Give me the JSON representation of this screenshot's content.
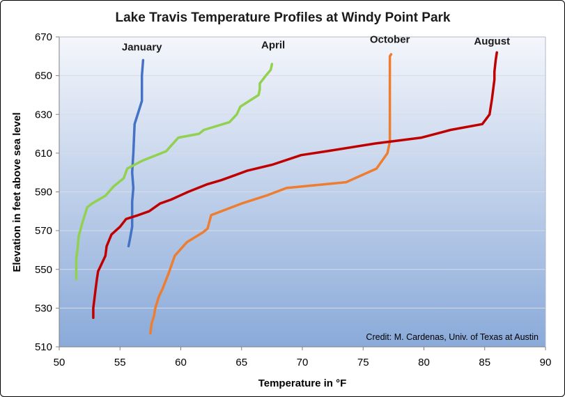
{
  "chart_data": {
    "type": "line",
    "title": "Lake Travis Temperature Profiles at Windy Point Park",
    "xlabel": "Temperature in °F",
    "ylabel": "Elevation in feet above sea level",
    "xlim": [
      50,
      90
    ],
    "ylim": [
      510,
      670
    ],
    "xticks": [
      50,
      55,
      60,
      65,
      70,
      75,
      80,
      85,
      90
    ],
    "yticks": [
      510,
      530,
      550,
      570,
      590,
      610,
      630,
      650,
      670
    ],
    "grid": "horizontal",
    "credit": "Credit: M. Cardenas, Univ. of Texas at Austin",
    "series": [
      {
        "name": "January",
        "color": "#4472c4",
        "points": [
          [
            55.7,
            562
          ],
          [
            55.8,
            565
          ],
          [
            56.0,
            572
          ],
          [
            56.0,
            585
          ],
          [
            56.1,
            592
          ],
          [
            56.0,
            600
          ],
          [
            56.1,
            610
          ],
          [
            56.2,
            625
          ],
          [
            56.8,
            637
          ],
          [
            56.8,
            650
          ],
          [
            56.9,
            658
          ]
        ]
      },
      {
        "name": "April",
        "color": "#92d050",
        "points": [
          [
            51.4,
            545
          ],
          [
            51.4,
            550
          ],
          [
            51.4,
            555
          ],
          [
            51.5,
            560
          ],
          [
            51.6,
            567
          ],
          [
            51.9,
            574
          ],
          [
            52.1,
            578
          ],
          [
            52.3,
            582
          ],
          [
            52.7,
            584
          ],
          [
            53.8,
            588
          ],
          [
            54.5,
            593
          ],
          [
            55.3,
            597
          ],
          [
            55.6,
            602
          ],
          [
            56.8,
            606
          ],
          [
            58.8,
            611
          ],
          [
            59.8,
            618
          ],
          [
            61.5,
            620
          ],
          [
            61.9,
            622
          ],
          [
            64.0,
            626
          ],
          [
            64.6,
            630
          ],
          [
            64.9,
            634
          ],
          [
            66.4,
            640
          ],
          [
            66.5,
            643
          ],
          [
            66.5,
            646
          ],
          [
            67.0,
            650
          ],
          [
            67.4,
            653
          ],
          [
            67.5,
            656
          ]
        ]
      },
      {
        "name": "October",
        "color": "#ed7d31",
        "points": [
          [
            57.5,
            517
          ],
          [
            57.6,
            522
          ],
          [
            57.8,
            526
          ],
          [
            57.9,
            530
          ],
          [
            58.2,
            536
          ],
          [
            58.5,
            540
          ],
          [
            59.0,
            548
          ],
          [
            59.5,
            557
          ],
          [
            60.5,
            564
          ],
          [
            61.8,
            569
          ],
          [
            62.2,
            571
          ],
          [
            62.5,
            578
          ],
          [
            65.0,
            584
          ],
          [
            67.0,
            588
          ],
          [
            68.7,
            592
          ],
          [
            73.6,
            595
          ],
          [
            76.1,
            602
          ],
          [
            77.0,
            610
          ],
          [
            77.2,
            616
          ],
          [
            77.2,
            630
          ],
          [
            77.2,
            650
          ],
          [
            77.2,
            660
          ],
          [
            77.3,
            661
          ]
        ]
      },
      {
        "name": "August",
        "color": "#c00000",
        "points": [
          [
            52.8,
            525
          ],
          [
            52.8,
            530
          ],
          [
            53.0,
            540
          ],
          [
            53.1,
            545
          ],
          [
            53.2,
            549
          ],
          [
            53.5,
            553
          ],
          [
            53.8,
            557
          ],
          [
            53.9,
            562
          ],
          [
            54.3,
            568
          ],
          [
            55.0,
            572
          ],
          [
            55.5,
            576
          ],
          [
            56.5,
            578
          ],
          [
            57.4,
            580
          ],
          [
            58.3,
            584
          ],
          [
            59.2,
            586
          ],
          [
            60.6,
            590
          ],
          [
            62.2,
            594
          ],
          [
            63.3,
            596
          ],
          [
            64.2,
            598
          ],
          [
            65.5,
            601
          ],
          [
            67.5,
            604
          ],
          [
            69.9,
            609
          ],
          [
            72.0,
            611
          ],
          [
            76.0,
            615
          ],
          [
            79.8,
            618
          ],
          [
            82.2,
            622
          ],
          [
            84.8,
            625
          ],
          [
            85.4,
            630
          ],
          [
            85.6,
            638
          ],
          [
            85.8,
            648
          ],
          [
            85.8,
            652
          ],
          [
            85.9,
            658
          ],
          [
            86.0,
            662
          ]
        ]
      }
    ],
    "labels": [
      {
        "series": "January",
        "text": "January",
        "x": 56.8,
        "y": 663
      },
      {
        "series": "April",
        "text": "April",
        "x": 67.6,
        "y": 664
      },
      {
        "series": "October",
        "text": "October",
        "x": 77.2,
        "y": 667
      },
      {
        "series": "August",
        "text": "August",
        "x": 85.6,
        "y": 666
      }
    ]
  }
}
